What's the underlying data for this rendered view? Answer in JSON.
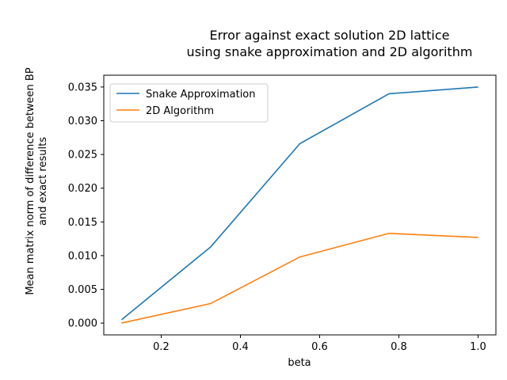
{
  "chart_data": {
    "type": "line",
    "title_lines": [
      "Error against exact solution 2D lattice",
      "using snake approximation and 2D algorithm"
    ],
    "xlabel": "beta",
    "ylabel_lines": [
      "Mean matrix norm of difference between BP",
      "and exact results"
    ],
    "x": [
      0.1,
      0.325,
      0.55,
      0.775,
      1.0
    ],
    "xlim": [
      0.055,
      1.045
    ],
    "ylim": [
      -0.00175,
      0.03675
    ],
    "xticks": [
      0.2,
      0.4,
      0.6,
      0.8,
      1.0
    ],
    "xtick_labels": [
      "0.2",
      "0.4",
      "0.6",
      "0.8",
      "1.0"
    ],
    "yticks": [
      0.0,
      0.005,
      0.01,
      0.015,
      0.02,
      0.025,
      0.03,
      0.035
    ],
    "ytick_labels": [
      "0.000",
      "0.005",
      "0.010",
      "0.015",
      "0.020",
      "0.025",
      "0.030",
      "0.035"
    ],
    "grid": false,
    "legend_position": "top-left",
    "series": [
      {
        "name": "Snake Approximation",
        "color": "#1f77b4",
        "values": [
          0.0005,
          0.0113,
          0.0266,
          0.034,
          0.035
        ]
      },
      {
        "name": "2D Algorithm",
        "color": "#ff7f0e",
        "values": [
          0.0,
          0.0029,
          0.0098,
          0.0133,
          0.0127
        ]
      }
    ]
  }
}
